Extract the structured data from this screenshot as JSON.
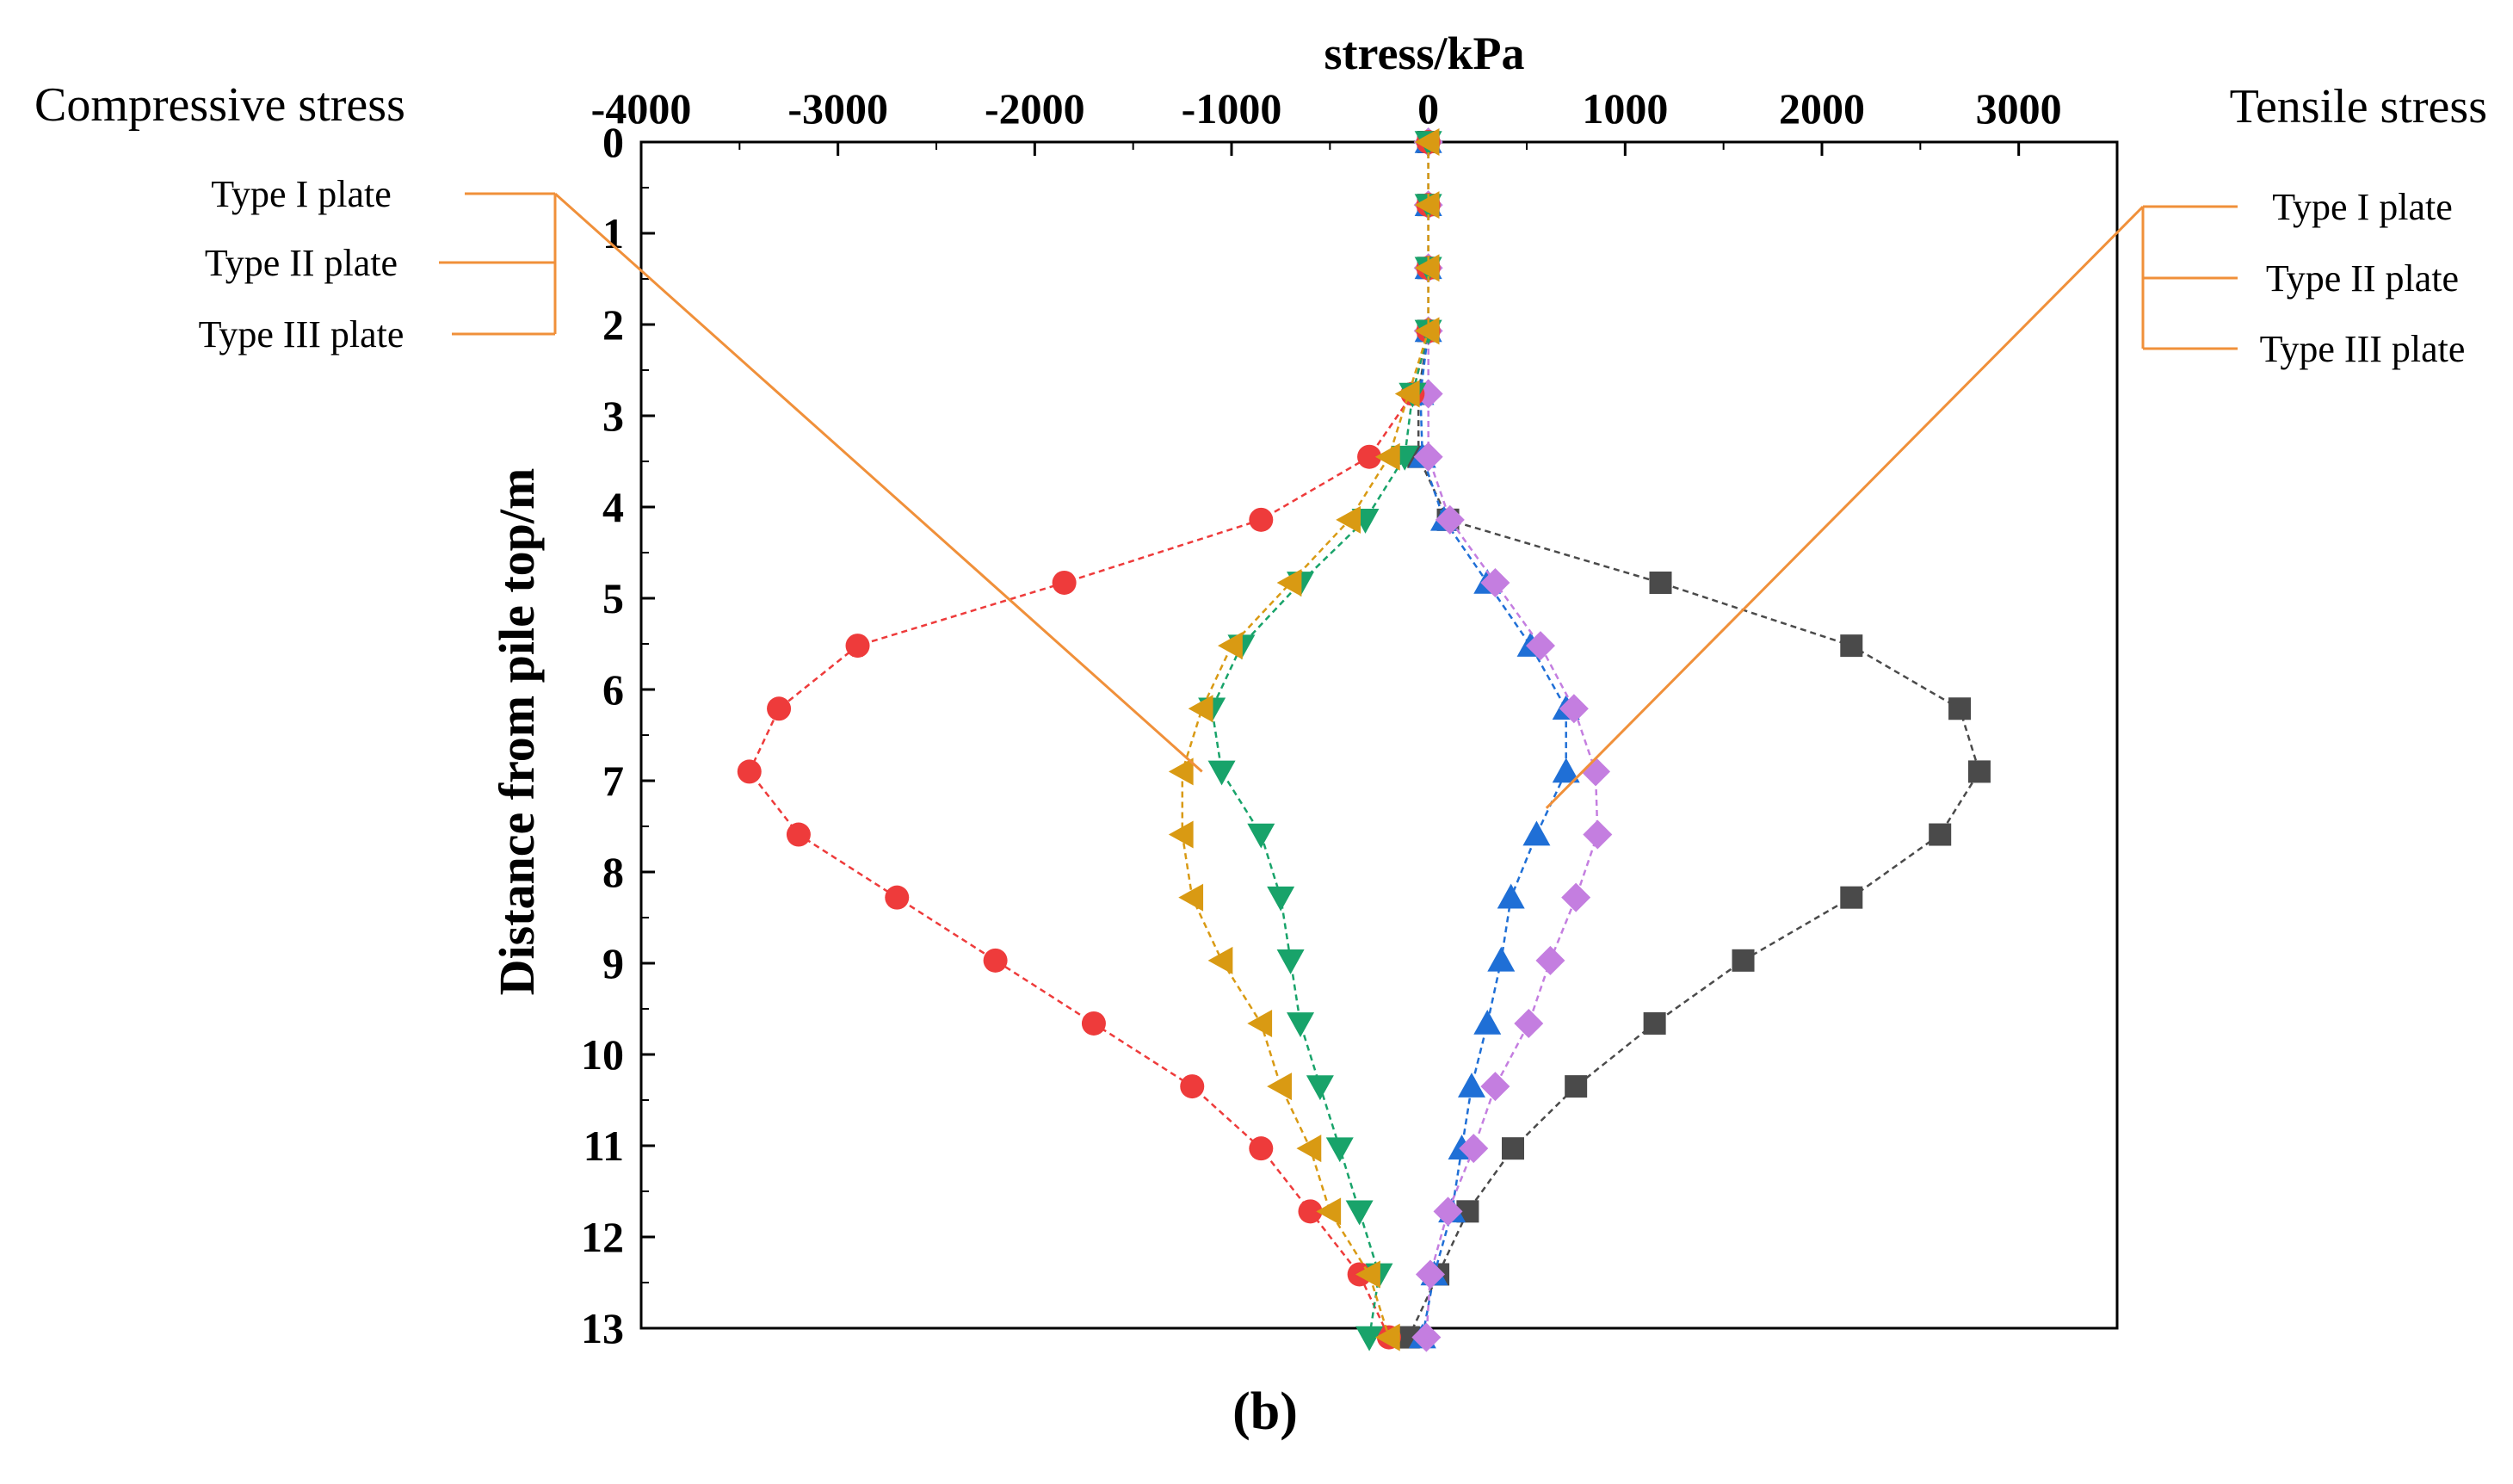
{
  "chart_data": {
    "type": "line",
    "title": "stress/kPa",
    "left_annotation": "Compressive stress",
    "right_annotation": "Tensile stress",
    "ylabel": "Distance from pile top/m",
    "xlim": [
      -4000,
      3500
    ],
    "ylim": [
      0,
      13
    ],
    "y_inverted": true,
    "x_axis_position": "top",
    "x_ticks": [
      -4000,
      -3000,
      -2000,
      -1000,
      0,
      1000,
      2000,
      3000
    ],
    "x_tick_labels": [
      "-4000",
      "-3000",
      "-2000",
      "-1000",
      "0",
      "1000",
      "2000",
      "3000"
    ],
    "y_ticks": [
      0,
      1,
      2,
      3,
      4,
      5,
      6,
      7,
      8,
      9,
      10,
      11,
      12,
      13
    ],
    "y_tick_labels": [
      "0",
      "1",
      "2",
      "3",
      "4",
      "5",
      "6",
      "7",
      "8",
      "9",
      "10",
      "11",
      "12",
      "13"
    ],
    "caption": "(b)",
    "left_legend": {
      "labels": [
        "Type I plate",
        "Type II plate",
        "Type III plate"
      ],
      "line_color": "#f0903a"
    },
    "right_legend": {
      "labels": [
        "Type I plate",
        "Type II plate",
        "Type III plate"
      ],
      "line_color": "#f0903a"
    },
    "series": [
      {
        "name": "Type I plate (tensile)",
        "side": "tensile",
        "marker": "square",
        "color": "#4a4a4a",
        "y": [
          0,
          0.69,
          1.38,
          2.07,
          2.76,
          3.45,
          4.14,
          4.83,
          5.52,
          6.21,
          6.9,
          7.59,
          8.28,
          8.97,
          9.66,
          10.35,
          11.03,
          11.72,
          12.41,
          13.1
        ],
        "x": [
          0,
          0,
          0,
          0,
          -50,
          -50,
          100,
          1180,
          2150,
          2700,
          2800,
          2600,
          2150,
          1600,
          1150,
          750,
          430,
          200,
          50,
          -100
        ]
      },
      {
        "name": "Type II plate (tensile)",
        "side": "tensile",
        "marker": "triangle-up",
        "color": "#1f6fd6",
        "y": [
          0,
          0.69,
          1.38,
          2.07,
          2.76,
          3.45,
          4.14,
          4.83,
          5.52,
          6.21,
          6.9,
          7.59,
          8.28,
          8.97,
          9.66,
          10.35,
          11.03,
          11.72,
          12.41,
          13.1
        ],
        "x": [
          0,
          0,
          0,
          0,
          -40,
          -30,
          80,
          300,
          520,
          700,
          700,
          550,
          420,
          370,
          300,
          220,
          170,
          120,
          30,
          -30
        ]
      },
      {
        "name": "Type III plate (tensile)",
        "side": "tensile",
        "marker": "diamond",
        "color": "#c47ee0",
        "y": [
          0,
          0.69,
          1.38,
          2.07,
          2.76,
          3.45,
          4.14,
          4.83,
          5.52,
          6.21,
          6.9,
          7.59,
          8.28,
          8.97,
          9.66,
          10.35,
          11.03,
          11.72,
          12.41,
          13.1
        ],
        "x": [
          0,
          0,
          0,
          0,
          0,
          0,
          110,
          340,
          570,
          740,
          850,
          860,
          750,
          620,
          510,
          340,
          230,
          100,
          10,
          -10
        ]
      },
      {
        "name": "Type I plate (compressive)",
        "side": "compressive",
        "marker": "circle",
        "color": "#ee3b3b",
        "y": [
          0,
          0.69,
          1.38,
          2.07,
          2.76,
          3.45,
          4.14,
          4.83,
          5.52,
          6.21,
          6.9,
          7.59,
          8.28,
          8.97,
          9.66,
          10.35,
          11.03,
          11.72,
          12.41,
          13.1
        ],
        "x": [
          0,
          0,
          0,
          0,
          -80,
          -300,
          -850,
          -1850,
          -2900,
          -3300,
          -3450,
          -3200,
          -2700,
          -2200,
          -1700,
          -1200,
          -850,
          -600,
          -350,
          -200
        ]
      },
      {
        "name": "Type II plate (compressive)",
        "side": "compressive",
        "marker": "triangle-down",
        "color": "#18a36a",
        "y": [
          0,
          0.69,
          1.38,
          2.07,
          2.76,
          3.45,
          4.14,
          4.83,
          5.52,
          6.21,
          6.9,
          7.59,
          8.28,
          8.97,
          9.66,
          10.35,
          11.03,
          11.72,
          12.41,
          13.1
        ],
        "x": [
          0,
          0,
          0,
          0,
          -80,
          -120,
          -320,
          -650,
          -950,
          -1100,
          -1050,
          -850,
          -750,
          -700,
          -650,
          -550,
          -450,
          -350,
          -250,
          -300
        ]
      },
      {
        "name": "Type III plate (compressive)",
        "side": "compressive",
        "marker": "triangle-left",
        "color": "#d99a13",
        "y": [
          0,
          0.69,
          1.38,
          2.07,
          2.76,
          3.45,
          4.14,
          4.83,
          5.52,
          6.21,
          6.9,
          7.59,
          8.28,
          8.97,
          9.66,
          10.35,
          11.03,
          11.72,
          12.41,
          13.1
        ],
        "x": [
          0,
          0,
          0,
          0,
          -100,
          -200,
          -400,
          -700,
          -1000,
          -1150,
          -1250,
          -1250,
          -1200,
          -1050,
          -850,
          -750,
          -600,
          -500,
          -300,
          -200
        ]
      }
    ]
  }
}
